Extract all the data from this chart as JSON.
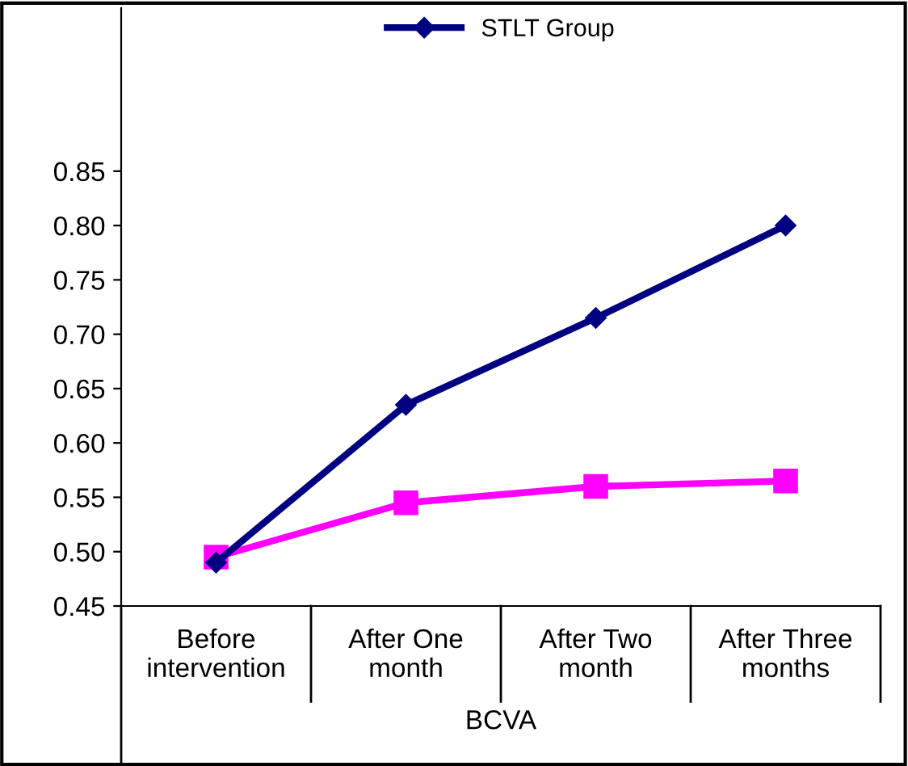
{
  "chart_data": {
    "type": "line",
    "xlabel": "BCVA",
    "categories": [
      "Before\nintervention",
      "After One\nmonth",
      "After Two\nmonth",
      "After Three\nmonths"
    ],
    "series": [
      {
        "name": "STLT Group",
        "color": "#000080",
        "values": [
          0.49,
          0.635,
          0.715,
          0.8
        ],
        "marker": "diamond"
      },
      {
        "color": "#ff00ff",
        "values": [
          0.495,
          0.545,
          0.56,
          0.565
        ],
        "marker": "square"
      }
    ],
    "ylim": [
      0.45,
      1.0
    ],
    "yticks": [
      {
        "value": 0.45,
        "label": "0.45"
      },
      {
        "value": 0.5,
        "label": "0.50"
      },
      {
        "value": 0.55,
        "label": "0.55"
      },
      {
        "value": 0.6,
        "label": "0.60"
      },
      {
        "value": 0.65,
        "label": "0.65"
      },
      {
        "value": 0.7,
        "label": "0.70"
      },
      {
        "value": 0.75,
        "label": "0.75"
      },
      {
        "value": 0.8,
        "label": "0.80"
      },
      {
        "value": 0.85,
        "label": "0.85"
      }
    ],
    "grid": false,
    "legend": "top",
    "line_style": "solid"
  }
}
